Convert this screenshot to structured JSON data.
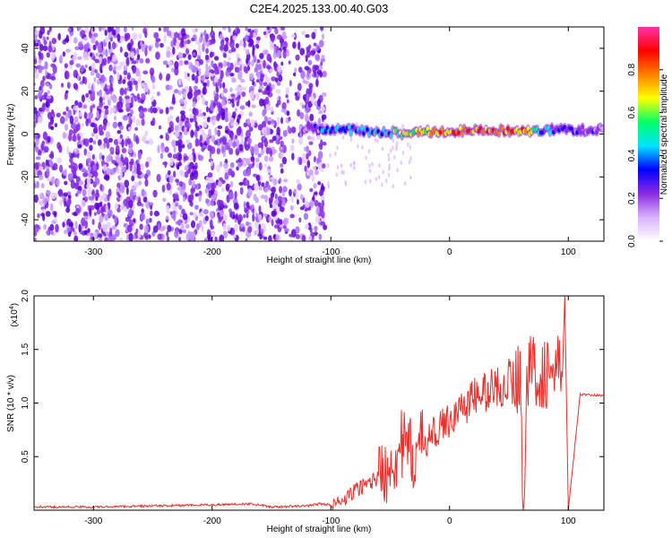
{
  "title": "C2E4.2025.133.00.40.G03",
  "chart_data": [
    {
      "type": "heatmap",
      "title": "C2E4.2025.133.00.40.G03",
      "xlabel": "Height of straight line (km)",
      "ylabel": "Frequency (Hz)",
      "xlim": [
        -350,
        130
      ],
      "ylim": [
        -50,
        50
      ],
      "x_ticks": [
        -300,
        -200,
        -100,
        0,
        100
      ],
      "y_ticks": [
        -40,
        -20,
        0,
        20,
        40
      ],
      "colorbar": {
        "label": "Normalized spectral amplitude",
        "range": [
          0.0,
          1.0
        ],
        "ticks": [
          "0.0",
          "0.2",
          "0.4",
          "0.6",
          "0.8"
        ],
        "colors": [
          "#ffffff",
          "#d9b3ff",
          "#8a2be2",
          "#0000ff",
          "#00e5ff",
          "#00ff66",
          "#ffff00",
          "#ff8000",
          "#ff0000",
          "#ff33aa"
        ]
      },
      "features": {
        "noise_region_x": [
          -350,
          -105
        ],
        "signal_track": [
          {
            "x": -125,
            "y": 3,
            "amp": 0.35
          },
          {
            "x": -100,
            "y": 2,
            "amp": 0.45
          },
          {
            "x": -80,
            "y": 2,
            "amp": 0.5
          },
          {
            "x": -60,
            "y": 1,
            "amp": 0.55
          },
          {
            "x": -40,
            "y": 0.5,
            "amp": 0.7
          },
          {
            "x": -20,
            "y": 1,
            "amp": 0.85
          },
          {
            "x": 0,
            "y": 1.5,
            "amp": 0.9
          },
          {
            "x": 20,
            "y": 1.5,
            "amp": 0.95
          },
          {
            "x": 40,
            "y": 1.5,
            "amp": 0.95
          },
          {
            "x": 60,
            "y": 1.5,
            "amp": 0.9
          },
          {
            "x": 80,
            "y": 2,
            "amp": 0.5
          },
          {
            "x": 100,
            "y": 2,
            "amp": 0.35
          },
          {
            "x": 130,
            "y": 2,
            "amp": 0.35
          }
        ]
      }
    },
    {
      "type": "line",
      "xlabel": "Height of straight line (km)",
      "ylabel": "SNR (10 * v/v)",
      "y_multiplier": "(x10^4)",
      "y_multiplier_base": "(x10",
      "y_multiplier_exp": "4",
      "y_multiplier_close": ")",
      "xlim": [
        -350,
        130
      ],
      "ylim": [
        0,
        2.0
      ],
      "x_ticks": [
        -300,
        -200,
        -100,
        0,
        100
      ],
      "y_ticks": [
        "0.5",
        "1.0",
        "1.5",
        "2.0"
      ],
      "line_color": "#e8302c",
      "series": [
        {
          "x": [
            -350,
            -300,
            -250,
            -200,
            -170,
            -160,
            -150,
            -120,
            -110,
            -100,
            -90,
            -80,
            -70,
            -60,
            -50,
            -40,
            -30,
            -20,
            -10,
            0,
            10,
            20,
            30,
            40,
            50,
            60,
            62,
            65,
            70,
            80,
            90,
            95,
            97,
            100,
            110,
            130
          ],
          "y": [
            0.03,
            0.03,
            0.04,
            0.05,
            0.06,
            0.05,
            0.03,
            0.04,
            0.06,
            0.05,
            0.08,
            0.18,
            0.25,
            0.3,
            0.45,
            0.6,
            0.5,
            0.65,
            0.75,
            0.85,
            0.95,
            1.05,
            1.1,
            1.15,
            1.2,
            1.22,
            0.0,
            1.25,
            1.3,
            1.28,
            1.3,
            1.25,
            2.0,
            0.0,
            1.08,
            1.07
          ]
        }
      ]
    }
  ]
}
